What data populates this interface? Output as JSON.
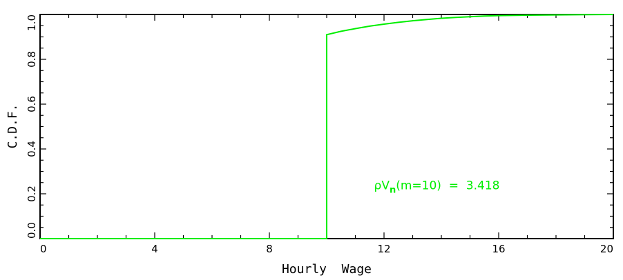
{
  "chart_data": {
    "type": "line",
    "xlabel": "Hourly  Wage",
    "ylabel": "C.D.F.",
    "xlim": [
      0,
      20
    ],
    "ylim": [
      0,
      1
    ],
    "x_ticks": [
      "0",
      "4",
      "8",
      "12",
      "16",
      "20"
    ],
    "y_ticks": [
      "0.0",
      "0.2",
      "0.4",
      "0.6",
      "0.8",
      "1.0"
    ],
    "grid": false,
    "annotation": {
      "prefix": "ρV",
      "subscript": "n",
      "suffix": "(m=10)  =  3.418",
      "x": 11.0,
      "y": 0.22
    },
    "series": [
      {
        "color": "#00ee00",
        "points": [
          [
            0,
            0.0
          ],
          [
            10,
            0.0
          ],
          [
            10,
            0.91
          ],
          [
            10.5,
            0.925
          ],
          [
            11,
            0.937
          ],
          [
            11.5,
            0.948
          ],
          [
            12,
            0.957
          ],
          [
            12.5,
            0.965
          ],
          [
            13,
            0.972
          ],
          [
            13.5,
            0.978
          ],
          [
            14,
            0.983
          ],
          [
            14.5,
            0.987
          ],
          [
            15,
            0.99
          ],
          [
            15.5,
            0.993
          ],
          [
            16,
            0.995
          ],
          [
            17,
            0.997
          ],
          [
            18,
            0.998
          ],
          [
            19,
            0.999
          ],
          [
            20,
            1.0
          ]
        ]
      }
    ]
  }
}
